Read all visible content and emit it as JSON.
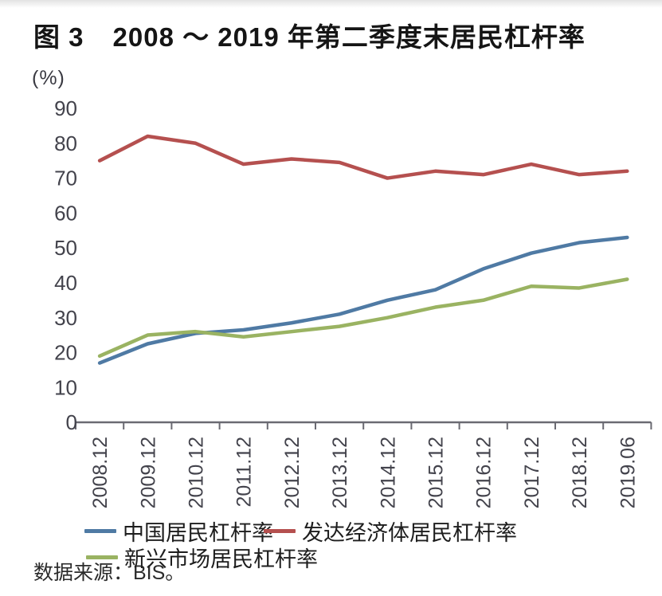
{
  "header": {
    "figure_label": "图 3",
    "title": "2008 ～ 2019 年第二季度末居民杠杆率"
  },
  "source_note": "数据来源：BIS。",
  "chart_data": {
    "type": "line",
    "title": "图 3 2008 ～ 2019 年第二季度末居民杠杆率",
    "xlabel": "",
    "ylabel": "(%)",
    "categories": [
      "2008.12",
      "2009.12",
      "2010.12",
      "2011.12",
      "2012.12",
      "2013.12",
      "2014.12",
      "2015.12",
      "2016.12",
      "2017.12",
      "2018.12",
      "2019.06"
    ],
    "series": [
      {
        "id": "china",
        "name": "中国居民杠杆率",
        "color": "#4f7aa4",
        "values": [
          17,
          22.5,
          25.5,
          26.5,
          28.5,
          31,
          35,
          38,
          44,
          48.5,
          51.5,
          53
        ]
      },
      {
        "id": "developed",
        "name": "发达经济体居民杠杆率",
        "color": "#b5504f",
        "values": [
          75,
          82,
          80,
          74,
          75.5,
          74.5,
          70,
          72,
          71,
          74,
          71,
          72
        ]
      },
      {
        "id": "emerging",
        "name": "新兴市场居民杠杆率",
        "color": "#9ab362",
        "values": [
          19,
          25,
          26,
          24.5,
          26,
          27.5,
          30,
          33,
          35,
          39,
          38.5,
          41
        ]
      }
    ],
    "y_ticks": [
      0,
      10,
      20,
      30,
      40,
      50,
      60,
      70,
      80,
      90
    ],
    "ylim": [
      0,
      90
    ],
    "grid": false,
    "legend_position": "bottom",
    "axis_color": "#6a6a72",
    "tick_label_color": "#43434c"
  }
}
